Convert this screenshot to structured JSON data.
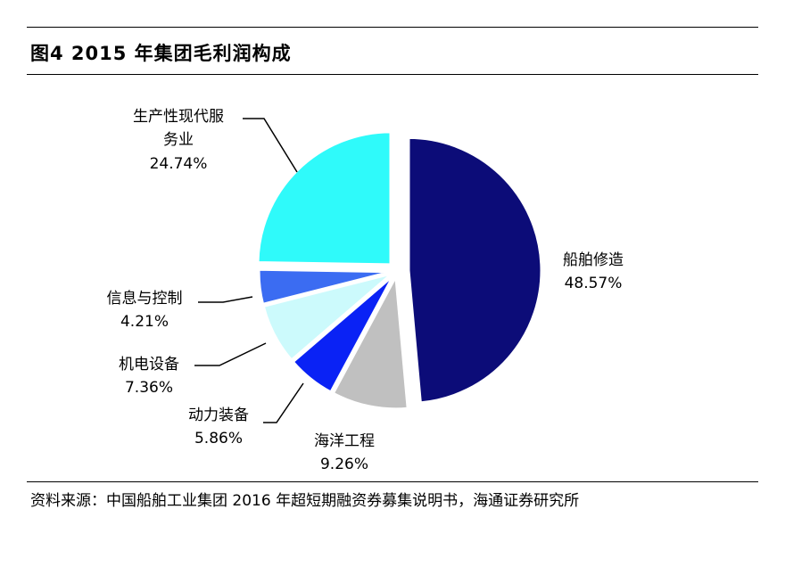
{
  "title": "图4  2015 年集团毛利润构成",
  "source": "资料来源：中国船舶工业集团 2016 年超短期融资券募集说明书，海通证券研究所",
  "chart_data": {
    "type": "pie",
    "title": "图4  2015 年集团毛利润构成",
    "start": "12 o'clock, clockwise",
    "slices": [
      {
        "label": "船舶修造",
        "value": 48.57,
        "text": "48.57%",
        "color": "#0c0c78"
      },
      {
        "label": "海洋工程",
        "value": 9.26,
        "text": "9.26%",
        "color": "#c0c0c0"
      },
      {
        "label": "动力装备",
        "value": 5.86,
        "text": "5.86%",
        "color": "#0a22f5"
      },
      {
        "label": "机电设备",
        "value": 7.36,
        "text": "7.36%",
        "color": "#ccfafc"
      },
      {
        "label": "信息与控制",
        "value": 4.21,
        "text": "4.21%",
        "color": "#3b6cf2"
      },
      {
        "label": "生产性现代服务业",
        "value": 24.74,
        "text": "24.74%",
        "color": "#2ffafa"
      }
    ]
  }
}
